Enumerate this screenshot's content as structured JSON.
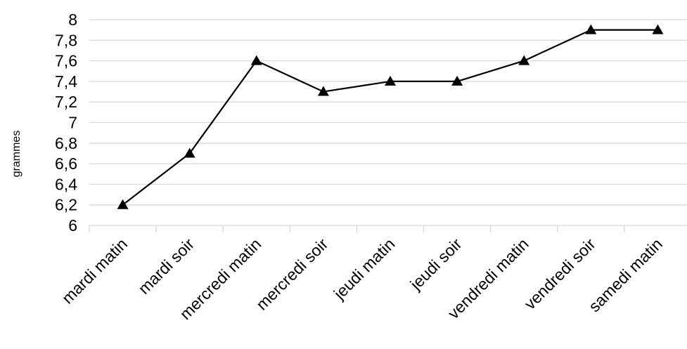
{
  "chart_data": {
    "type": "line",
    "title": "",
    "xlabel": "",
    "ylabel": "grammes",
    "categories": [
      "mardi matin",
      "mardi soir",
      "mercredi matin",
      "mercredi soir",
      "jeudi matin",
      "jeudi soir",
      "vendredi matin",
      "vendredi soir",
      "samedi matin"
    ],
    "series": [
      {
        "values": [
          6.2,
          6.7,
          7.6,
          7.3,
          7.4,
          7.4,
          7.6,
          7.9,
          7.9
        ],
        "color": "#000000",
        "marker": "triangle"
      }
    ],
    "ylim": [
      6,
      8
    ],
    "ytick_labels": [
      "6",
      "6,2",
      "6,4",
      "6,6",
      "6,8",
      "7",
      "7,2",
      "7,4",
      "7,6",
      "7,8",
      "8"
    ],
    "grid": true,
    "gridline_color": "#d9d9d9",
    "legend": "none"
  }
}
